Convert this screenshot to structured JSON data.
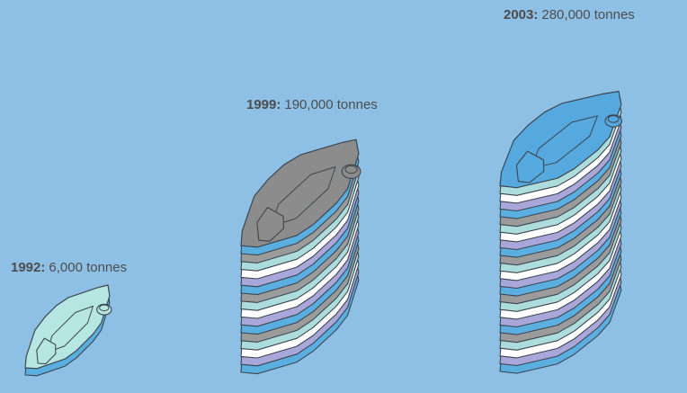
{
  "chart_data": {
    "type": "bar",
    "title": "",
    "unit": "tonnes",
    "categories": [
      "1992",
      "1999",
      "2003"
    ],
    "values": [
      6000,
      190000,
      280000
    ],
    "value_labels": [
      "6,000 tonnes",
      "190,000 tonnes",
      "280,000 tonnes"
    ],
    "year_labels": [
      "1992:",
      "1999:",
      "2003:"
    ],
    "mark": "stacked plastic canisters (pictograph)",
    "colors": {
      "background": "#8ec0e6",
      "layer_palette": [
        "#5aaee0",
        "#a9a6da",
        "#ffffff",
        "#acdcdc",
        "#9b9b9b"
      ],
      "top_1992": "#b6e6e2",
      "top_1999": "#8c8c8c",
      "top_2003": "#55a9de",
      "outline": "#3c4650"
    }
  }
}
